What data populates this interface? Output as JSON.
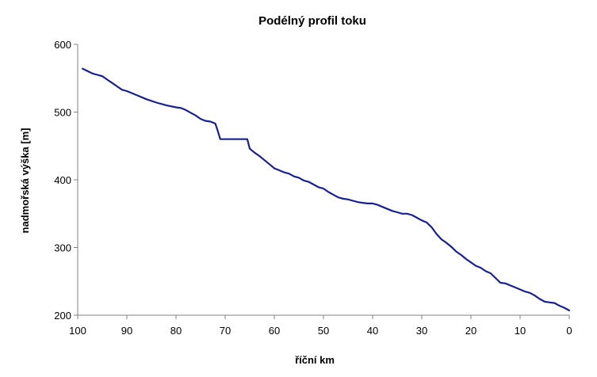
{
  "chart_data": {
    "type": "line",
    "title": "Podélný profil toku",
    "xlabel": "říční km",
    "ylabel": "nadmořská výška [m]",
    "x_reversed": true,
    "xlim": [
      100,
      0
    ],
    "ylim": [
      200,
      600
    ],
    "x_ticks": [
      100,
      90,
      80,
      70,
      60,
      50,
      40,
      30,
      20,
      10,
      0
    ],
    "y_ticks": [
      200,
      300,
      400,
      500,
      600
    ],
    "grid": false,
    "legend": "none",
    "line_color": "#1a237e",
    "series": [
      {
        "x": [
          99,
          97,
          96,
          95,
          94,
          93,
          92,
          91,
          90,
          88,
          86,
          84,
          82,
          80,
          79,
          78,
          77,
          76,
          75,
          74,
          73,
          72,
          71.5,
          71,
          70,
          69,
          68,
          67,
          66,
          65.5,
          65,
          64,
          63,
          62,
          61,
          60,
          59,
          58,
          57,
          56,
          55,
          54,
          53,
          52,
          51,
          50,
          49,
          48,
          47,
          46,
          45,
          44,
          43,
          42,
          41,
          40,
          39,
          38,
          37,
          36,
          35,
          34,
          33,
          32,
          31,
          30,
          29,
          28,
          27,
          26,
          25,
          24,
          23,
          22,
          21,
          20,
          19,
          18,
          17,
          16,
          15,
          14,
          13,
          12,
          11,
          10,
          9,
          8,
          7,
          6,
          5,
          4,
          3,
          2,
          1,
          0
        ],
        "y": [
          564,
          557,
          555,
          553,
          548,
          543,
          538,
          533,
          531,
          525,
          519,
          514,
          510,
          507,
          506,
          503,
          499,
          495,
          490,
          487,
          486,
          483,
          472,
          460,
          460,
          460,
          460,
          460,
          460,
          460,
          446,
          440,
          435,
          429,
          423,
          417,
          414,
          411,
          409,
          405,
          403,
          399,
          397,
          393,
          389,
          387,
          382,
          378,
          374,
          372,
          371,
          369,
          367,
          366,
          365,
          365,
          363,
          360,
          357,
          354,
          352,
          350,
          350,
          348,
          344,
          340,
          337,
          330,
          320,
          312,
          307,
          301,
          294,
          289,
          283,
          278,
          273,
          270,
          265,
          262,
          255,
          248,
          247,
          244,
          241,
          238,
          235,
          233,
          229,
          224,
          220,
          219,
          218,
          214,
          211,
          207
        ]
      }
    ]
  }
}
